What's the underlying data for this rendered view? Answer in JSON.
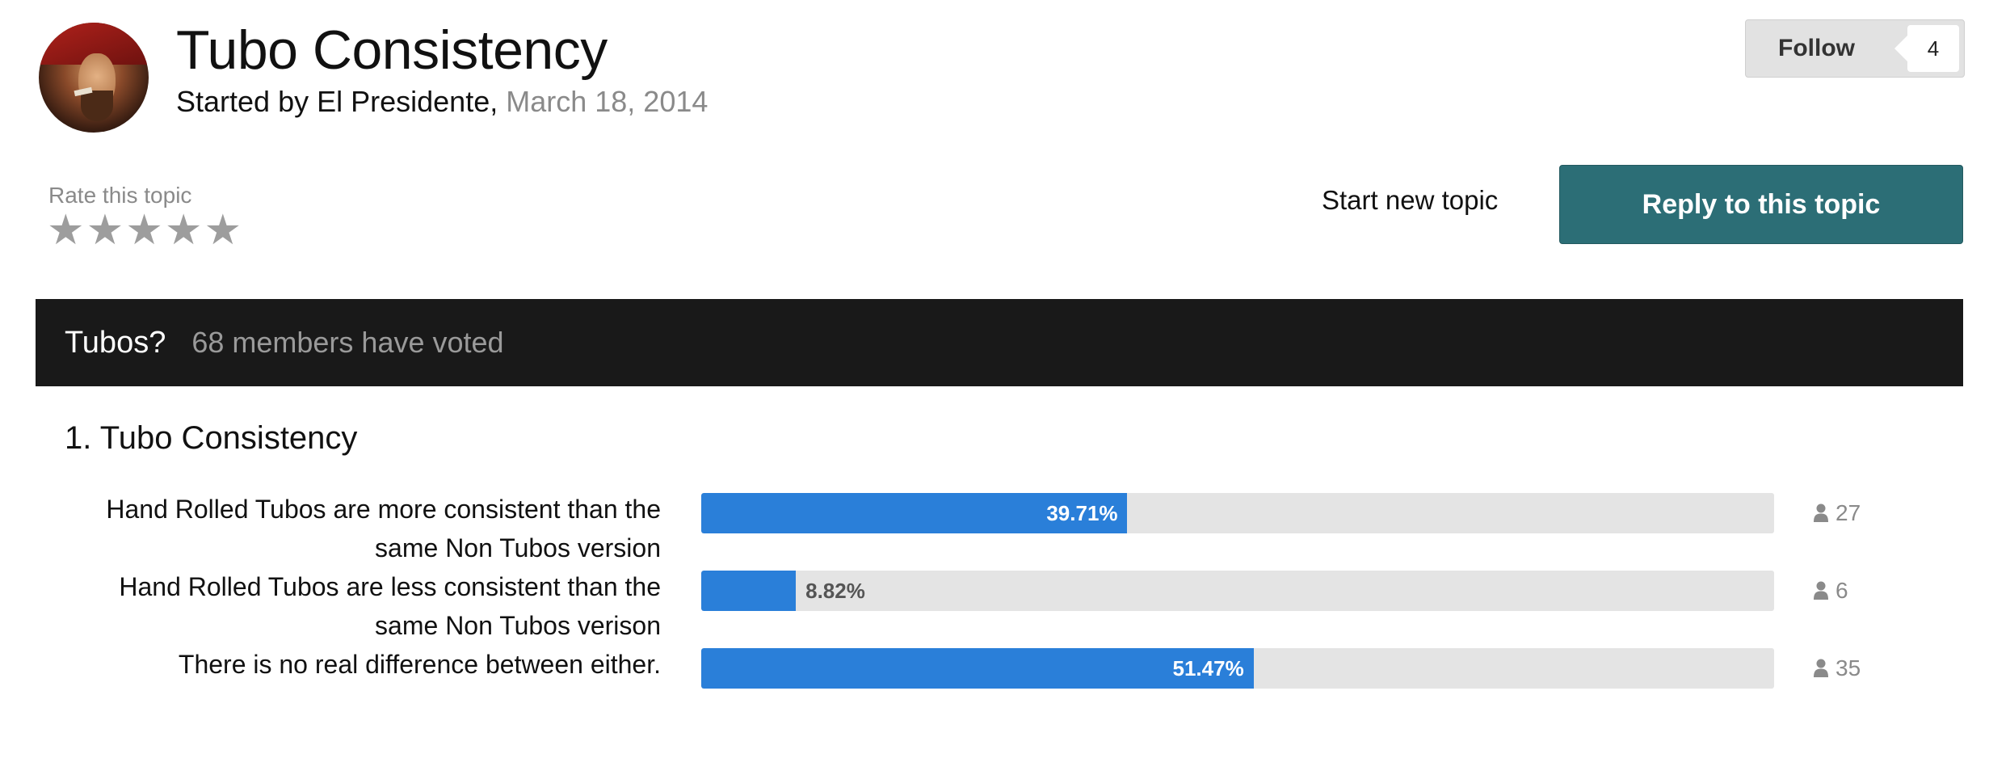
{
  "topic": {
    "title": "Tubo Consistency",
    "started_by_prefix": "Started by El Presidente,",
    "date": "March 18, 2014"
  },
  "follow": {
    "label": "Follow",
    "count": "4"
  },
  "rating": {
    "label": "Rate this topic",
    "stars": 5,
    "icon": "star-icon"
  },
  "actions": {
    "start_new_topic": "Start new topic",
    "reply": "Reply to this topic"
  },
  "poll": {
    "name": "Tubos?",
    "votes_text": "68 members have voted",
    "question": "1. Tubo Consistency",
    "choices": [
      {
        "label": "Hand Rolled Tubos are more consistent than the same Non Tubos version",
        "percent": 39.71,
        "percent_text": "39.71%",
        "voters": "27"
      },
      {
        "label": "Hand Rolled Tubos are less consistent than the same Non Tubos verison",
        "percent": 8.82,
        "percent_text": "8.82%",
        "voters": "6"
      },
      {
        "label": "There is no real difference between either.",
        "percent": 51.47,
        "percent_text": "51.47%",
        "voters": "35"
      }
    ]
  },
  "colors": {
    "accent": "#2c6e76",
    "bar": "#2a7fd9",
    "poll_header": "#191919"
  }
}
